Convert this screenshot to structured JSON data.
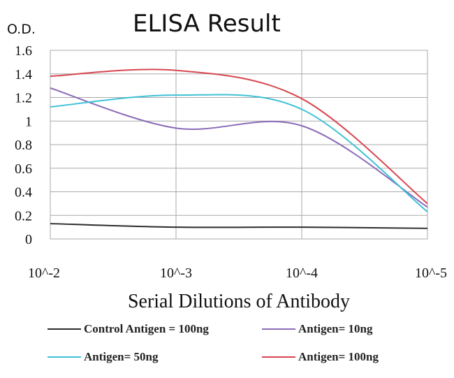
{
  "chart_data": {
    "type": "line",
    "title": "ELISA Result",
    "ylabel": "O.D.",
    "xlabel": "Serial Dilutions of Antibody",
    "categories": [
      "10^-2",
      "10^-3",
      "10^-4",
      "10^-5"
    ],
    "yticks": [
      "1.6",
      "1.4",
      "1.2",
      "1",
      "0.8",
      "0.6",
      "0.4",
      "0.2",
      "0"
    ],
    "ylim": [
      0,
      1.6
    ],
    "grid": true,
    "legend_position": "bottom",
    "series": [
      {
        "name": "Control Antigen = 100ng",
        "color": "#2b2b2b",
        "values": [
          0.13,
          0.1,
          0.1,
          0.09
        ]
      },
      {
        "name": "Antigen= 10ng",
        "color": "#8b6bb8",
        "values": [
          1.28,
          0.94,
          0.96,
          0.27
        ]
      },
      {
        "name": "Antigen= 50ng",
        "color": "#3fc1d6",
        "values": [
          1.12,
          1.22,
          1.1,
          0.23
        ]
      },
      {
        "name": "Antigen= 100ng",
        "color": "#d8464f",
        "values": [
          1.38,
          1.43,
          1.19,
          0.3
        ]
      }
    ]
  }
}
